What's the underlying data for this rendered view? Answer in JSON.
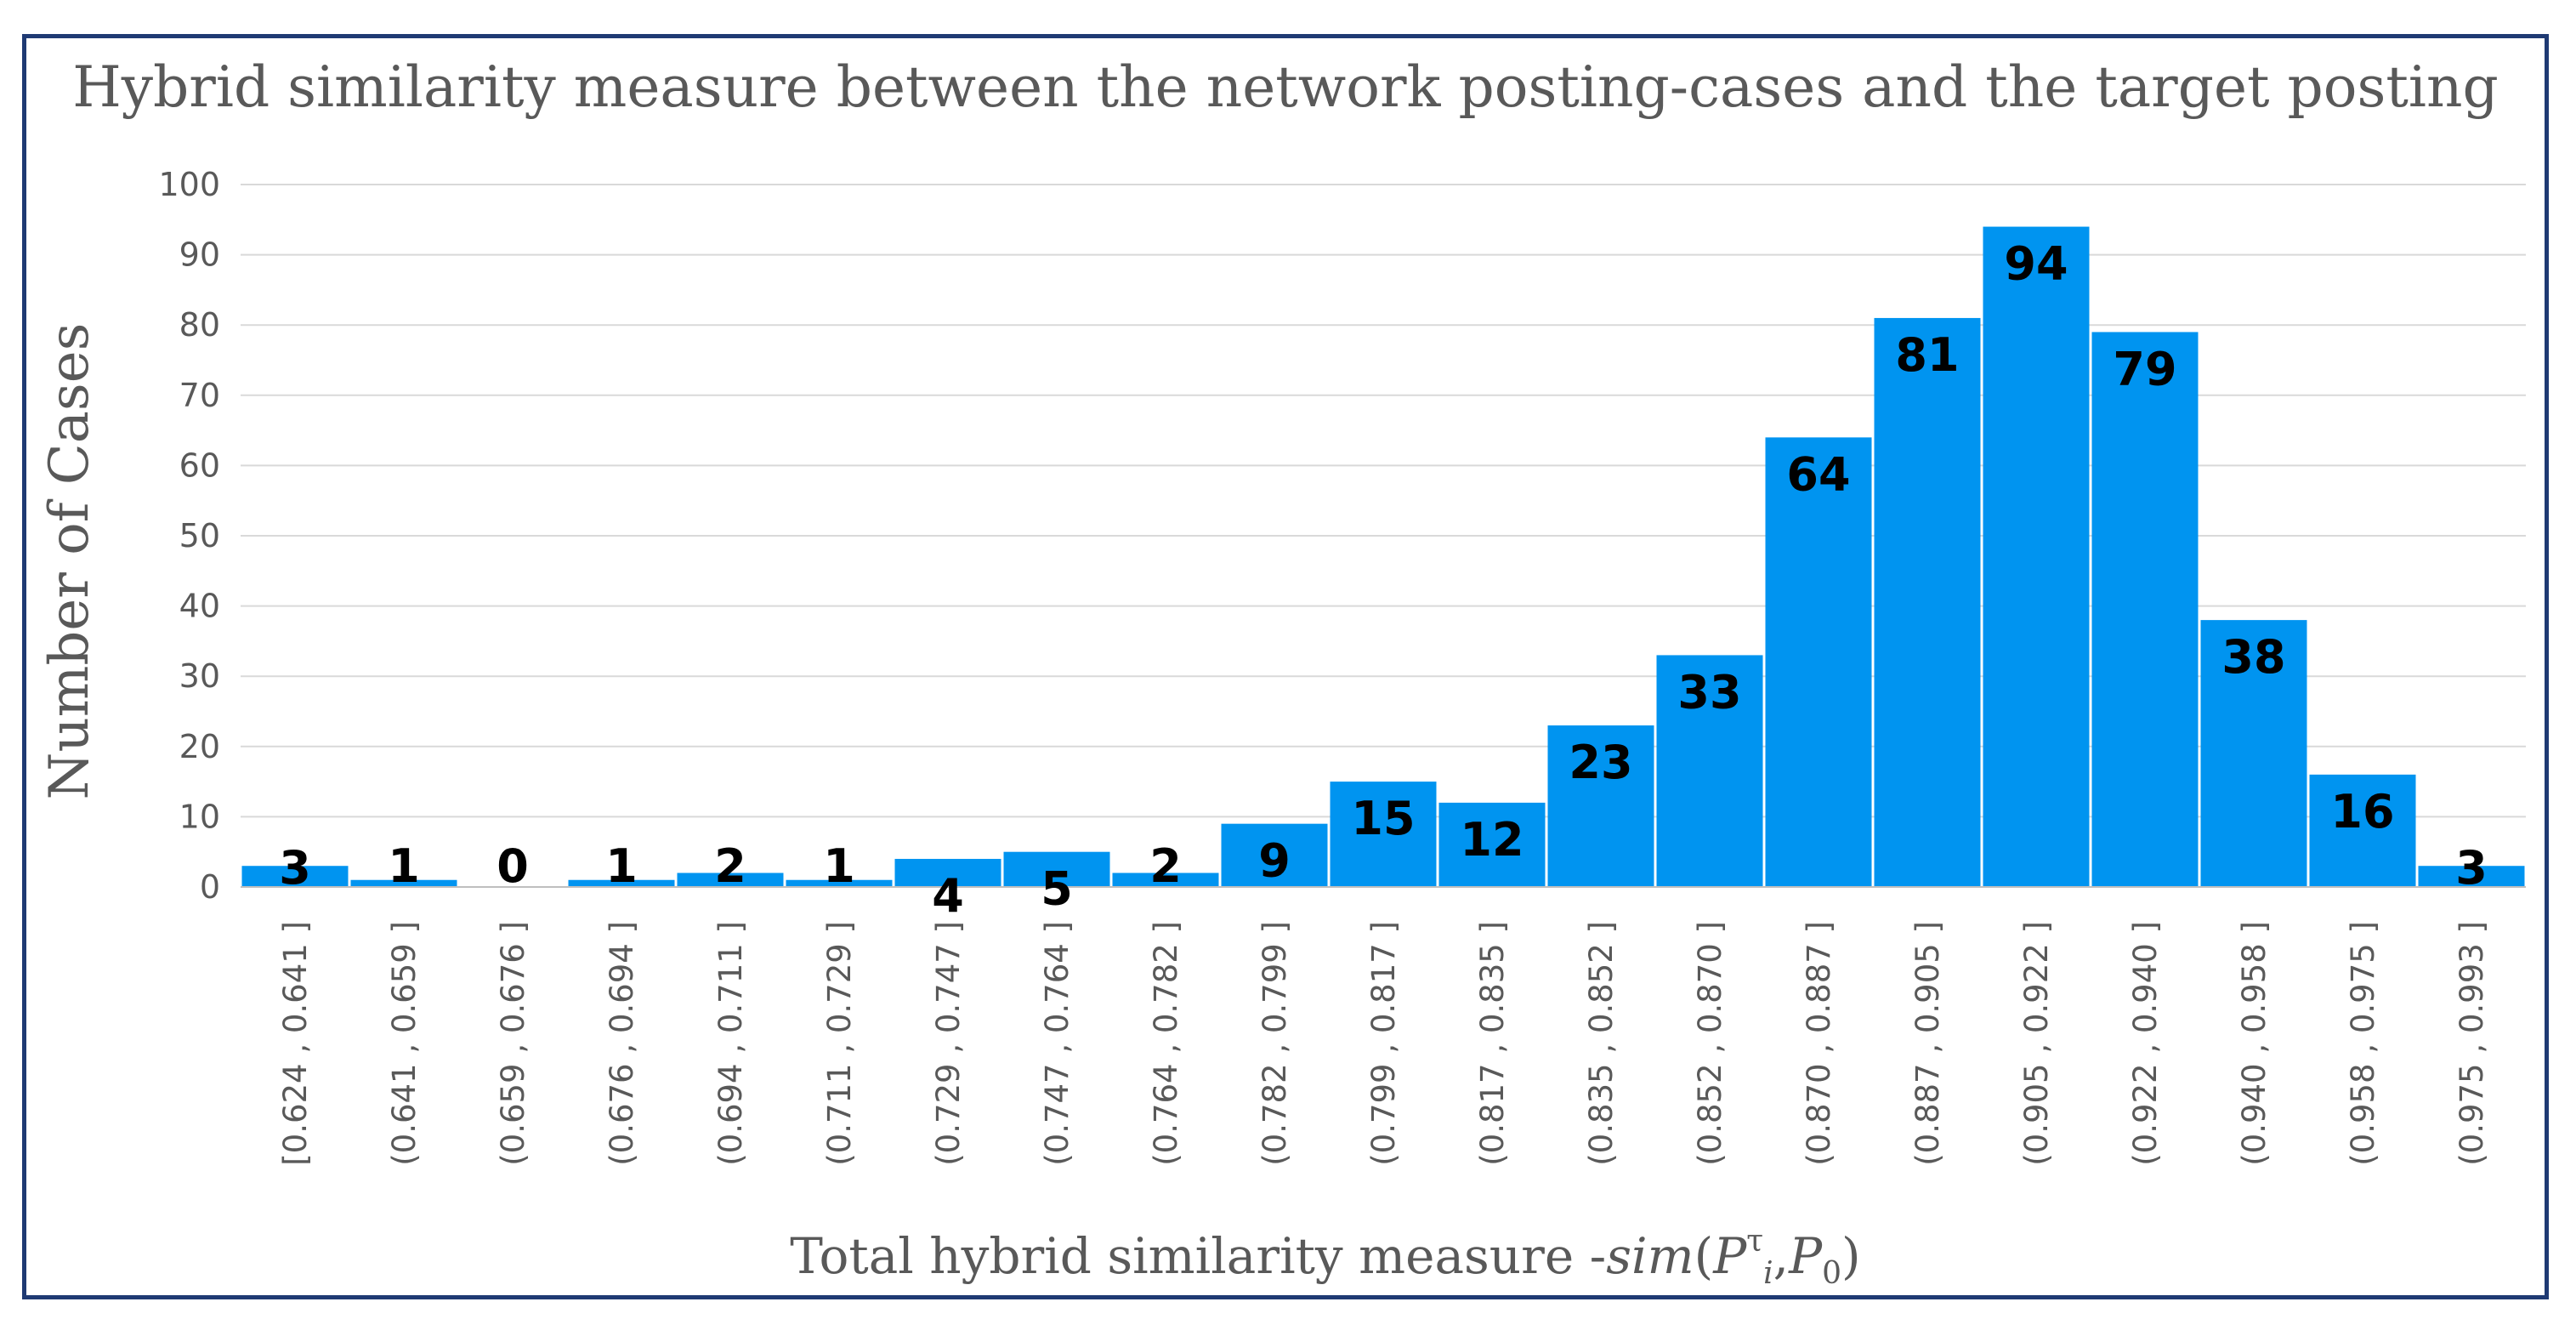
{
  "chart_data": {
    "type": "bar",
    "title": "Hybrid similarity measure between the network posting-cases and the target posting",
    "xlabel": "Total hybrid similarity measure -",
    "xlabel_formula": {
      "func": "sim",
      "open": "(",
      "p": "P",
      "tau": "τ",
      "i": "i",
      "comma1": ",",
      "p0": "P",
      "zero": "0",
      "close": ")"
    },
    "ylabel": "Number of Cases",
    "ylim": [
      0,
      100
    ],
    "yticks": [
      "0",
      "10",
      "20",
      "30",
      "40",
      "50",
      "60",
      "70",
      "80",
      "90",
      "100"
    ],
    "categories": [
      "[0.624 , 0.641 ]",
      "(0.641 , 0.659 ]",
      "(0.659 , 0.676 ]",
      "(0.676 , 0.694 ]",
      "(0.694 , 0.711 ]",
      "(0.711 , 0.729 ]",
      "(0.729 , 0.747 ]",
      "(0.747 , 0.764 ]",
      "(0.764 , 0.782 ]",
      "(0.782 , 0.799 ]",
      "(0.799 , 0.817 ]",
      "(0.817 , 0.835 ]",
      "(0.835 , 0.852 ]",
      "(0.852 , 0.870 ]",
      "(0.870 , 0.887 ]",
      "(0.887 , 0.905 ]",
      "(0.905 , 0.922 ]",
      "(0.922 , 0.940 ]",
      "(0.940 , 0.958 ]",
      "(0.958 , 0.975 ]",
      "(0.975 , 0.993 ]"
    ],
    "values": [
      3,
      1,
      0,
      1,
      2,
      1,
      4,
      5,
      2,
      9,
      15,
      12,
      23,
      33,
      64,
      81,
      94,
      79,
      38,
      16,
      3
    ],
    "bar_color": "#0094f0",
    "grid": true,
    "legend": "none"
  }
}
